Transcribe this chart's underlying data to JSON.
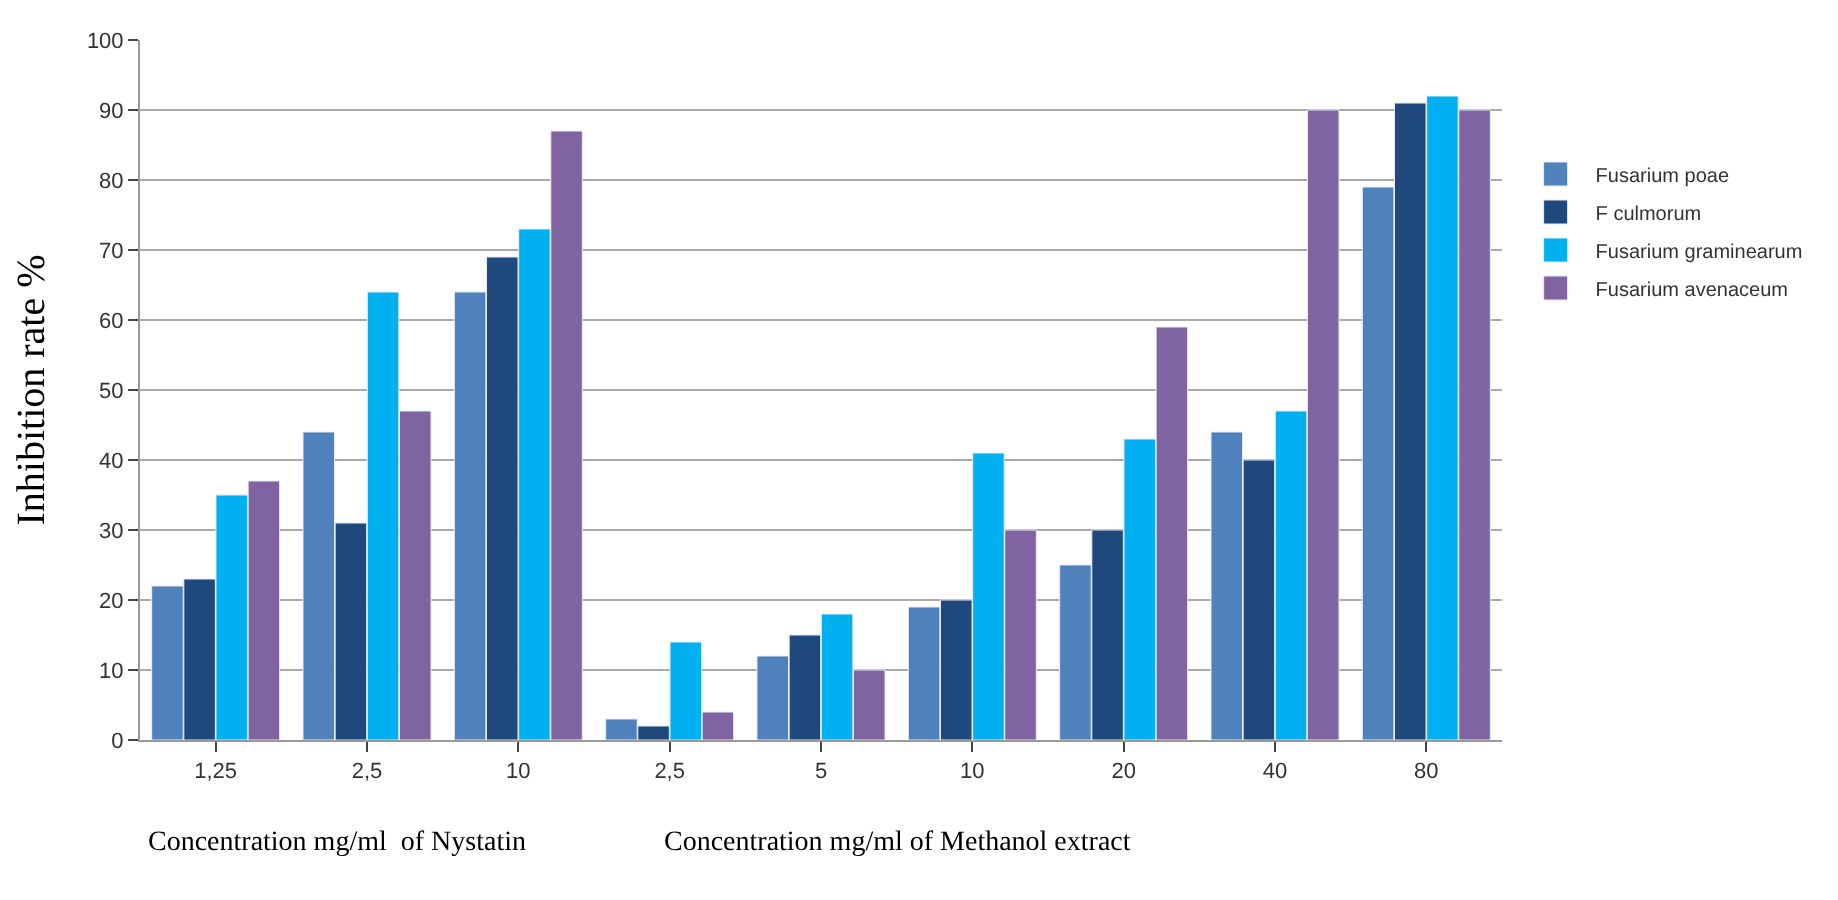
{
  "chart_data": {
    "type": "bar",
    "ylabel": "Inhibition rate %",
    "categories": [
      "1,25",
      "2,5",
      "10",
      "2,5",
      "5",
      "10",
      "20",
      "40",
      "80"
    ],
    "series": [
      {
        "name": "Fusarium poae",
        "color": "#4f81bd",
        "values": [
          22,
          44,
          64,
          3,
          12,
          19,
          25,
          44,
          79
        ]
      },
      {
        "name": "F culmorum",
        "color": "#1f497d",
        "values": [
          23,
          31,
          69,
          2,
          15,
          20,
          30,
          40,
          91
        ]
      },
      {
        "name": "Fusarium graminearum",
        "color": "#00b0f0",
        "values": [
          35,
          64,
          73,
          14,
          18,
          41,
          43,
          47,
          92
        ]
      },
      {
        "name": "Fusarium avenaceum",
        "color": "#8064a2",
        "values": [
          37,
          47,
          87,
          4,
          10,
          30,
          59,
          90,
          90
        ]
      }
    ],
    "ylim": [
      0,
      100
    ],
    "yticks": [
      0,
      10,
      20,
      30,
      40,
      50,
      60,
      70,
      80,
      90,
      100
    ],
    "grid": "y",
    "legend": "right",
    "annotations": [
      "Concentration mg/ml  of Nystatin",
      "Concentration mg/ml of Methanol extract"
    ]
  }
}
